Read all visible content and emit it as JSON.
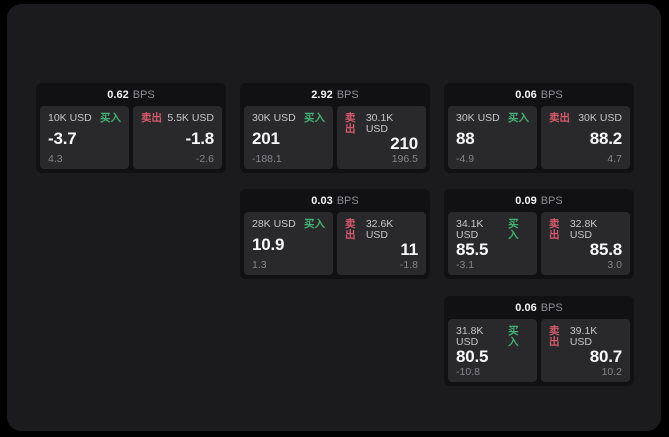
{
  "colors": {
    "page_bg": "#000000",
    "container_bg": "#1b1b1d",
    "card_bg": "#111113",
    "panel_bg": "#29292b",
    "buy": "#43b075",
    "sell": "#d65a6d"
  },
  "bps_unit": "BPS",
  "cards": [
    {
      "spread": "0.62",
      "buy": {
        "size": "10K USD",
        "side_label": "买入",
        "price": "-3.7",
        "change": "4.3"
      },
      "sell": {
        "side_label": "卖出",
        "size": "5.5K USD",
        "price": "-1.8",
        "change": "-2.6"
      }
    },
    {
      "spread": "2.92",
      "buy": {
        "size": "30K USD",
        "side_label": "买入",
        "price": "201",
        "change": "-188.1"
      },
      "sell": {
        "side_label": "卖出",
        "size": "30.1K USD",
        "price": "210",
        "change": "196.5"
      }
    },
    {
      "spread": "0.06",
      "buy": {
        "size": "30K USD",
        "side_label": "买入",
        "price": "88",
        "change": "-4.9"
      },
      "sell": {
        "side_label": "卖出",
        "size": "30K USD",
        "price": "88.2",
        "change": "4.7"
      }
    },
    {
      "spread": "0.03",
      "buy": {
        "size": "28K USD",
        "side_label": "买入",
        "price": "10.9",
        "change": "1.3"
      },
      "sell": {
        "side_label": "卖出",
        "size": "32.6K USD",
        "price": "11",
        "change": "-1.8"
      }
    },
    {
      "spread": "0.09",
      "buy": {
        "size": "34.1K USD",
        "side_label": "买入",
        "price": "85.5",
        "change": "-3.1"
      },
      "sell": {
        "side_label": "卖出",
        "size": "32.8K USD",
        "price": "85.8",
        "change": "3.0"
      }
    },
    {
      "spread": "0.06",
      "buy": {
        "size": "31.8K USD",
        "side_label": "买入",
        "price": "80.5",
        "change": "-10.8"
      },
      "sell": {
        "side_label": "卖出",
        "size": "39.1K USD",
        "price": "80.7",
        "change": "10.2"
      }
    }
  ]
}
